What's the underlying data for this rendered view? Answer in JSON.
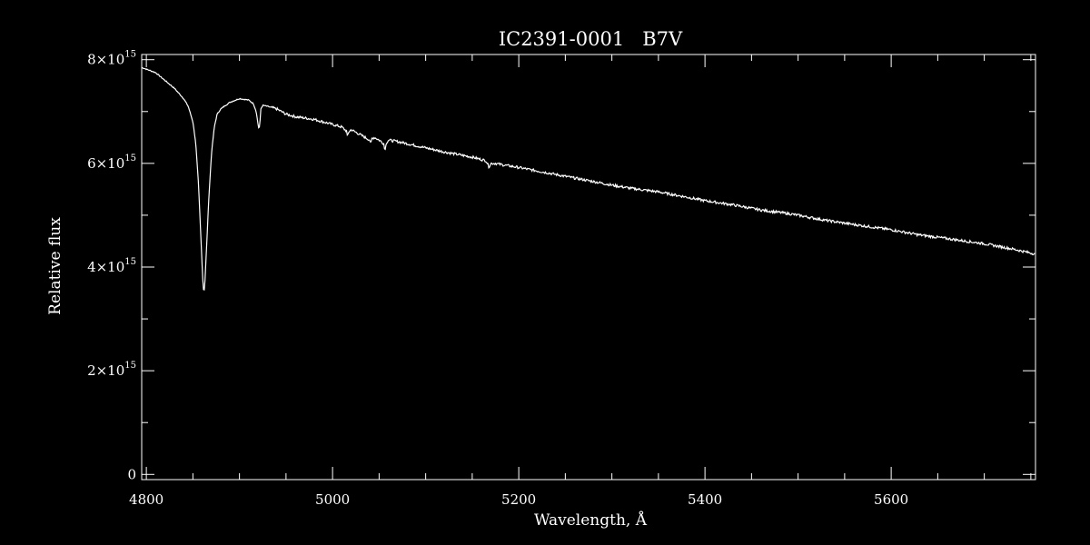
{
  "chart_data": {
    "type": "line",
    "title": "IC2391-0001   B7V",
    "xlabel": "Wavelength, Å",
    "ylabel": "Relative flux",
    "xlim": [
      4795,
      5755
    ],
    "ylim": [
      -100000000000000,
      8100000000000000
    ],
    "x_ticks": [
      4800,
      5000,
      5200,
      5400,
      5600
    ],
    "x_tick_labels": [
      "4800",
      "5000",
      "5200",
      "5400",
      "5600"
    ],
    "y_ticks": [
      0,
      2000000000000000,
      4000000000000000,
      6000000000000000,
      8000000000000000
    ],
    "y_tick_labels": [
      {
        "text": "0",
        "base": "0",
        "exp": ""
      },
      {
        "text": "2×10^15",
        "base": "2×10",
        "exp": "15"
      },
      {
        "text": "4×10^15",
        "base": "4×10",
        "exp": "15"
      },
      {
        "text": "6×10^15",
        "base": "6×10",
        "exp": "15"
      },
      {
        "text": "8×10^15",
        "base": "8×10",
        "exp": "15"
      }
    ],
    "grid": false,
    "colors": {
      "background": "#000000",
      "foreground": "#ffffff"
    },
    "series": [
      {
        "x": [
          4795,
          4810,
          4820,
          4830,
          4840,
          4845,
          4850,
          4853,
          4856,
          4858,
          4860,
          4861,
          4862,
          4863,
          4865,
          4867,
          4870,
          4873,
          4876,
          4880,
          4885,
          4890,
          4900,
          4910,
          4915,
          4918,
          4920,
          4921,
          4922,
          4923,
          4925,
          4930,
          4940,
          4950,
          4960,
          4980,
          5000,
          5010,
          5015,
          5016,
          5017,
          5020,
          5030,
          5035,
          5040,
          5041,
          5042,
          5045,
          5050,
          5055,
          5056,
          5057,
          5058,
          5060,
          5070,
          5080,
          5100,
          5120,
          5150,
          5165,
          5168,
          5170,
          5175,
          5180,
          5200,
          5230,
          5250,
          5280,
          5300,
          5320,
          5350,
          5380,
          5400,
          5430,
          5460,
          5490,
          5500,
          5530,
          5560,
          5600,
          5630,
          5660,
          5700,
          5730,
          5755
        ],
        "y": [
          7850000000000000.0,
          7750000000000000.0,
          7600000000000000.0,
          7450000000000000.0,
          7250000000000000.0,
          7100000000000000.0,
          6800000000000000.0,
          6400000000000000.0,
          5600000000000000.0,
          4800000000000000.0,
          4000000000000000.0,
          3600000000000000.0,
          3520000000000000.0,
          3750000000000000.0,
          4500000000000000.0,
          5300000000000000.0,
          6200000000000000.0,
          6700000000000000.0,
          6950000000000000.0,
          7050000000000000.0,
          7120000000000000.0,
          7180000000000000.0,
          7250000000000000.0,
          7220000000000000.0,
          7150000000000000.0,
          7000000000000000.0,
          6750000000000000.0,
          6650000000000000.0,
          6780000000000000.0,
          7050000000000000.0,
          7120000000000000.0,
          7100000000000000.0,
          7050000000000000.0,
          6950000000000000.0,
          6900000000000000.0,
          6850000000000000.0,
          6750000000000000.0,
          6700000000000000.0,
          6620000000000000.0,
          6500000000000000.0,
          6600000000000000.0,
          6650000000000000.0,
          6550000000000000.0,
          6500000000000000.0,
          6450000000000000.0,
          6350000000000000.0,
          6480000000000000.0,
          6500000000000000.0,
          6450000000000000.0,
          6380000000000000.0,
          6260000000000000.0,
          6320000000000000.0,
          6400000000000000.0,
          6450000000000000.0,
          6420000000000000.0,
          6380000000000000.0,
          6300000000000000.0,
          6220000000000000.0,
          6120000000000000.0,
          6050000000000000.0,
          5930000000000000.0,
          6000000000000000.0,
          6000000000000000.0,
          5980000000000000.0,
          5920000000000000.0,
          5820000000000000.0,
          5750000000000000.0,
          5650000000000000.0,
          5580000000000000.0,
          5520000000000000.0,
          5450000000000000.0,
          5350000000000000.0,
          5280000000000000.0,
          5200000000000000.0,
          5100000000000000.0,
          5030000000000000.0,
          5000000000000000.0,
          4900000000000000.0,
          4820000000000000.0,
          4720000000000000.0,
          4620000000000000.0,
          4550000000000000.0,
          4450000000000000.0,
          4350000000000000.0,
          4250000000000000.0
        ]
      }
    ]
  }
}
